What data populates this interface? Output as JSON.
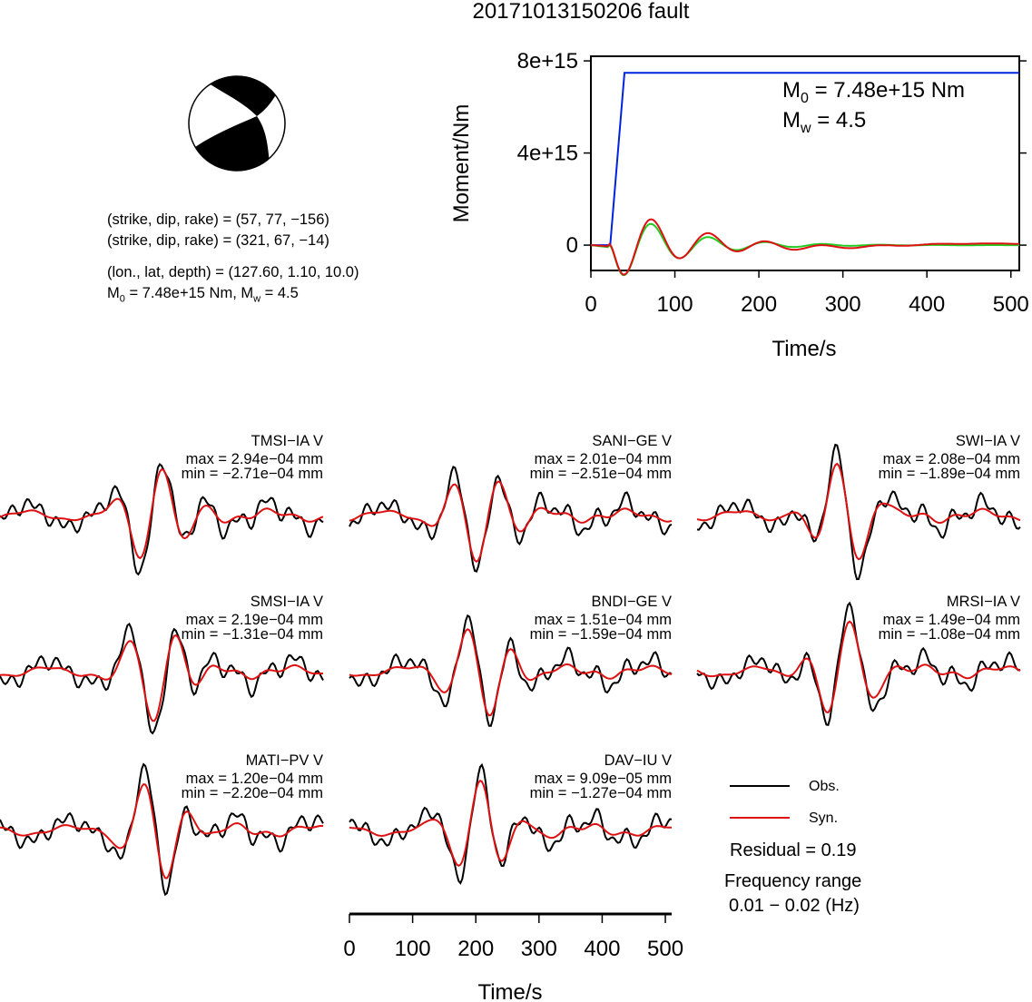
{
  "title": "20171013150206 fault",
  "mechanism": {
    "line1": "(strike, dip, rake) = (57, 77, −156)",
    "line2": "(strike, dip, rake) = (321, 67, −14)",
    "line3": "(lon., lat, depth) = (127.60, 1.10, 10.0)",
    "line4_pre": "M",
    "line4_sub": "0",
    "line4_post": " = 7.48e+15 Nm, M",
    "line4_sub2": "w",
    "line4_end": " = 4.5"
  },
  "moment_panel": {
    "ylabel": "Moment/Nm",
    "xlabel": "Time/s",
    "m0_pre": "M",
    "m0_sub": "0",
    "m0_post": " = 7.48e+15 Nm",
    "mw_pre": "M",
    "mw_sub": "w",
    "mw_post": " = 4.5",
    "colors": {
      "moment": "#0022dd",
      "rate_red": "#dd1111",
      "rate_green": "#22cc22"
    }
  },
  "chart_data": [
    {
      "type": "line",
      "title": "",
      "xlabel": "Time/s",
      "ylabel": "Moment/Nm",
      "xlim": [
        0,
        510
      ],
      "ylim": [
        -1100000000000000.0,
        8200000000000000.0
      ],
      "x_ticks": [
        "0",
        "100",
        "200",
        "300",
        "400",
        "500"
      ],
      "x_tick_values": [
        0,
        100,
        200,
        300,
        400,
        500
      ],
      "y_ticks": [
        "0",
        "4e+15",
        "8e+15"
      ],
      "y_tick_values": [
        0,
        4000000000000000.0,
        8000000000000000.0
      ],
      "series": [
        {
          "name": "",
          "color": "#0022dd",
          "x": [
            0,
            23,
            40,
            510
          ],
          "y": [
            0,
            0,
            7480000000000000.0,
            7480000000000000.0
          ]
        }
      ]
    },
    {
      "type": "line",
      "title": "",
      "xlabel": "Time/s",
      "ylabel": "",
      "xlim": [
        0,
        510
      ],
      "x_ticks": [
        "0",
        "100",
        "200",
        "300",
        "400",
        "500"
      ],
      "x_tick_values": [
        0,
        100,
        200,
        300,
        400,
        500
      ],
      "traces": [
        {
          "station": "TMSI−IA V",
          "max": "max = 2.94e−04 mm",
          "min": "min = −2.71e−04 mm"
        },
        {
          "station": "SANI−GE V",
          "max": "max = 2.01e−04 mm",
          "min": "min = −2.51e−04 mm"
        },
        {
          "station": "SWI−IA V",
          "max": "max = 2.08e−04 mm",
          "min": "min = −1.89e−04 mm"
        },
        {
          "station": "SMSI−IA V",
          "max": "max = 2.19e−04 mm",
          "min": "min = −1.31e−04 mm"
        },
        {
          "station": "BNDI−GE V",
          "max": "max = 1.51e−04 mm",
          "min": "min = −1.59e−04 mm"
        },
        {
          "station": "MRSI−IA V",
          "max": "max = 1.49e−04 mm",
          "min": "min = −1.08e−04 mm"
        },
        {
          "station": "MATI−PV V",
          "max": "max = 1.20e−04 mm",
          "min": "min = −2.20e−04 mm"
        },
        {
          "station": "DAV−IU V",
          "max": "max = 9.09e−05 mm",
          "min": "min = −1.27e−04 mm"
        }
      ],
      "legend": [
        {
          "label": "Obs.",
          "color": "#000000"
        },
        {
          "label": "Syn.",
          "color": "#dd1111"
        }
      ]
    }
  ],
  "summary": {
    "residual": "Residual = 0.19",
    "freq_label": "Frequency range",
    "freq_value": "0.01 − 0.02 (Hz)"
  }
}
